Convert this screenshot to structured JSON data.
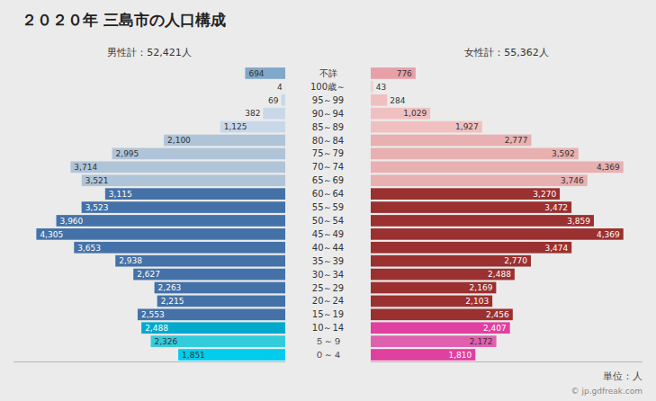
{
  "chart_data": {
    "type": "bar",
    "orientation": "horizontal",
    "title": "２０２０年 三島市の人口構成",
    "categories": [
      "０～４",
      "５～９",
      "10～14",
      "15～19",
      "20～24",
      "25～29",
      "30～34",
      "35～39",
      "40～44",
      "45～49",
      "50～54",
      "55～59",
      "60～64",
      "65～69",
      "70～74",
      "75～79",
      "80～84",
      "85～89",
      "90～94",
      "95～99",
      "100歳～",
      "不詳"
    ],
    "series": [
      {
        "name": "男性計：52,421人",
        "values": [
          1851,
          2326,
          2488,
          2553,
          2215,
          2263,
          2627,
          2938,
          3653,
          4305,
          3960,
          3523,
          3115,
          3521,
          3714,
          2995,
          2100,
          1125,
          382,
          69,
          4,
          694
        ],
        "value_labels": [
          "1,851",
          "2,326",
          "2,488",
          "2,553",
          "2,215",
          "2,263",
          "2,627",
          "2,938",
          "3,653",
          "4,305",
          "3,960",
          "3,523",
          "3,115",
          "3,521",
          "3,714",
          "2,995",
          "2,100",
          "1,125",
          "382",
          "69",
          "4",
          "694"
        ],
        "colors": [
          "#00ccee",
          "#33ccdd",
          "#00aacc",
          "#4472a8",
          "#4472a8",
          "#4472a8",
          "#4472a8",
          "#4472a8",
          "#4472a8",
          "#4472a8",
          "#4472a8",
          "#4472a8",
          "#4472a8",
          "#b0c4d8",
          "#b0c4d8",
          "#b0c4d8",
          "#b0c4d8",
          "#c8d8e8",
          "#c8d8e8",
          "#c8d8e8",
          "#c8d8e8",
          "#7fa8c9"
        ]
      },
      {
        "name": "女性計：55,362人",
        "values": [
          1810,
          2172,
          2407,
          2456,
          2103,
          2169,
          2488,
          2770,
          3474,
          4369,
          3859,
          3472,
          3270,
          3746,
          4369,
          3592,
          2777,
          1927,
          1029,
          284,
          43,
          776
        ],
        "value_labels": [
          "1,810",
          "2,172",
          "2,407",
          "2,456",
          "2,103",
          "2,169",
          "2,488",
          "2,770",
          "3,474",
          "4,369",
          "3,859",
          "3,472",
          "3,270",
          "3,746",
          "4,369",
          "3,592",
          "2,777",
          "1,927",
          "1,029",
          "284",
          "43",
          "776"
        ],
        "colors": [
          "#e040a0",
          "#e060b0",
          "#e040a0",
          "#9b3030",
          "#9b3030",
          "#9b3030",
          "#9b3030",
          "#9b3030",
          "#9b3030",
          "#9b3030",
          "#9b3030",
          "#9b3030",
          "#9b3030",
          "#e8b0b0",
          "#e8b0b0",
          "#e8b0b0",
          "#e8b0b0",
          "#f0c0c0",
          "#f0c0c0",
          "#f0c0c0",
          "#f0d0d0",
          "#e8a0a8"
        ]
      }
    ],
    "xlim": [
      0,
      4700
    ],
    "annotations": [
      "単位：人",
      "© jp.gdfreak.com"
    ],
    "data_labels": true,
    "tick_labels": false,
    "grid": false
  }
}
